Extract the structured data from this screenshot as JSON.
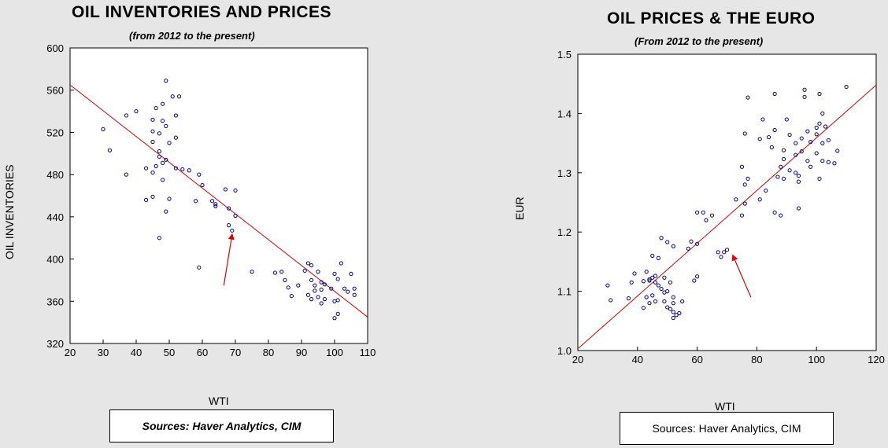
{
  "left": {
    "title": "OIL INVENTORIES AND PRICES",
    "subtitle": "(from 2012 to the present)",
    "source": "Sources: Haver Analytics, CIM"
  },
  "right": {
    "title": "OIL PRICES & THE EURO",
    "subtitle": "(From 2012 to the present)",
    "source": "Sources: Haver Analytics, CIM"
  },
  "colors": {
    "points": "#00008b",
    "trend": "#d40000",
    "arrow": "#e00000",
    "plot_bg": "#ffffff",
    "page_bg": "#e6e6e6"
  },
  "chart_data": [
    {
      "type": "scatter",
      "title": "OIL INVENTORIES AND PRICES",
      "subtitle": "(from 2012 to the present)",
      "xlabel": "WTI",
      "ylabel": "OIL INVENTORIES",
      "xlim": [
        20,
        110
      ],
      "ylim": [
        320,
        600
      ],
      "xticks": [
        20,
        30,
        40,
        50,
        60,
        70,
        80,
        90,
        100,
        110
      ],
      "yticks": [
        320,
        360,
        400,
        440,
        480,
        520,
        560,
        600
      ],
      "grid": false,
      "trendline": {
        "x": [
          20,
          110
        ],
        "y": [
          565,
          345
        ]
      },
      "arrow": {
        "from": [
          66.5,
          375
        ],
        "to": [
          69,
          423
        ]
      },
      "points": [
        [
          49,
          569
        ],
        [
          51,
          554
        ],
        [
          53,
          554
        ],
        [
          48,
          547
        ],
        [
          46,
          543
        ],
        [
          40,
          540
        ],
        [
          37,
          536
        ],
        [
          52,
          536
        ],
        [
          45,
          532
        ],
        [
          48,
          531
        ],
        [
          49,
          526
        ],
        [
          45,
          521
        ],
        [
          30,
          523
        ],
        [
          47,
          519
        ],
        [
          52,
          515
        ],
        [
          50,
          510
        ],
        [
          45,
          511
        ],
        [
          32,
          503
        ],
        [
          47,
          502
        ],
        [
          47,
          497
        ],
        [
          49,
          494
        ],
        [
          48,
          491
        ],
        [
          46,
          488
        ],
        [
          43,
          486
        ],
        [
          52,
          486
        ],
        [
          54,
          485
        ],
        [
          56,
          484
        ],
        [
          45,
          482
        ],
        [
          37,
          480
        ],
        [
          59,
          480
        ],
        [
          48,
          475
        ],
        [
          60,
          470
        ],
        [
          67,
          466
        ],
        [
          70,
          465
        ],
        [
          50,
          457
        ],
        [
          43,
          456
        ],
        [
          45,
          459
        ],
        [
          58,
          455
        ],
        [
          63,
          455
        ],
        [
          64,
          452
        ],
        [
          64,
          450
        ],
        [
          49,
          445
        ],
        [
          68,
          448
        ],
        [
          70,
          441
        ],
        [
          68,
          432
        ],
        [
          69,
          427
        ],
        [
          47,
          420
        ],
        [
          59,
          392
        ],
        [
          75,
          388
        ],
        [
          92,
          396
        ],
        [
          93,
          394
        ],
        [
          102,
          396
        ],
        [
          100,
          386
        ],
        [
          105,
          386
        ],
        [
          91,
          389
        ],
        [
          95,
          388
        ],
        [
          84,
          388
        ],
        [
          82,
          387
        ],
        [
          101,
          381
        ],
        [
          85,
          380
        ],
        [
          93,
          380
        ],
        [
          96,
          378
        ],
        [
          97,
          376
        ],
        [
          89,
          375
        ],
        [
          103,
          372
        ],
        [
          104,
          369
        ],
        [
          99,
          372
        ],
        [
          86,
          373
        ],
        [
          106,
          372
        ],
        [
          94,
          370
        ],
        [
          92,
          366
        ],
        [
          95,
          364
        ],
        [
          93,
          362
        ],
        [
          97,
          362
        ],
        [
          100,
          360
        ],
        [
          101,
          361
        ],
        [
          96,
          358
        ],
        [
          106,
          366
        ],
        [
          100,
          344
        ],
        [
          101,
          348
        ],
        [
          87,
          365
        ],
        [
          94,
          375
        ],
        [
          96,
          371
        ]
      ]
    },
    {
      "type": "scatter",
      "title": "OIL PRICES & THE EURO",
      "subtitle": "(From 2012 to the present)",
      "xlabel": "WTI",
      "ylabel": "EUR",
      "xlim": [
        20,
        120
      ],
      "ylim": [
        1.0,
        1.5
      ],
      "xticks": [
        20,
        40,
        60,
        80,
        100,
        120
      ],
      "yticks": [
        1.0,
        1.1,
        1.2,
        1.3,
        1.4,
        1.5
      ],
      "ytick_labels": [
        "1.0",
        "1.1",
        "1.2",
        "1.3",
        "1.4",
        "1.5"
      ],
      "grid": false,
      "trendline": {
        "x": [
          20,
          120
        ],
        "y": [
          1.003,
          1.448
        ]
      },
      "arrow": {
        "from": [
          78,
          1.09
        ],
        "to": [
          72,
          1.16
        ]
      },
      "points": [
        [
          110,
          1.445
        ],
        [
          96,
          1.44
        ],
        [
          86,
          1.433
        ],
        [
          77,
          1.427
        ],
        [
          101,
          1.433
        ],
        [
          96,
          1.428
        ],
        [
          102,
          1.4
        ],
        [
          82,
          1.39
        ],
        [
          90,
          1.39
        ],
        [
          101,
          1.383
        ],
        [
          103,
          1.378
        ],
        [
          100,
          1.376
        ],
        [
          86,
          1.372
        ],
        [
          97,
          1.37
        ],
        [
          76,
          1.366
        ],
        [
          100,
          1.365
        ],
        [
          91,
          1.364
        ],
        [
          84,
          1.36
        ],
        [
          95,
          1.358
        ],
        [
          81,
          1.357
        ],
        [
          104,
          1.355
        ],
        [
          98,
          1.352
        ],
        [
          93,
          1.35
        ],
        [
          102,
          1.35
        ],
        [
          85,
          1.343
        ],
        [
          89,
          1.338
        ],
        [
          107,
          1.337
        ],
        [
          95,
          1.336
        ],
        [
          100,
          1.333
        ],
        [
          93,
          1.33
        ],
        [
          89,
          1.323
        ],
        [
          97,
          1.32
        ],
        [
          104,
          1.318
        ],
        [
          102,
          1.32
        ],
        [
          106,
          1.316
        ],
        [
          98,
          1.31
        ],
        [
          88,
          1.31
        ],
        [
          75,
          1.31
        ],
        [
          91,
          1.304
        ],
        [
          93,
          1.3
        ],
        [
          94,
          1.295
        ],
        [
          87,
          1.293
        ],
        [
          101,
          1.29
        ],
        [
          89,
          1.29
        ],
        [
          77,
          1.29
        ],
        [
          94,
          1.285
        ],
        [
          76,
          1.28
        ],
        [
          83,
          1.27
        ],
        [
          81,
          1.255
        ],
        [
          73,
          1.255
        ],
        [
          76,
          1.248
        ],
        [
          94,
          1.24
        ],
        [
          86,
          1.233
        ],
        [
          75,
          1.228
        ],
        [
          88,
          1.228
        ],
        [
          62,
          1.233
        ],
        [
          60,
          1.233
        ],
        [
          65,
          1.228
        ],
        [
          63,
          1.22
        ],
        [
          58,
          1.184
        ],
        [
          48,
          1.19
        ],
        [
          50,
          1.183
        ],
        [
          60,
          1.18
        ],
        [
          57,
          1.172
        ],
        [
          52,
          1.176
        ],
        [
          45,
          1.16
        ],
        [
          47,
          1.156
        ],
        [
          67,
          1.166
        ],
        [
          70,
          1.17
        ],
        [
          68,
          1.158
        ],
        [
          69,
          1.166
        ],
        [
          60,
          1.125
        ],
        [
          59,
          1.118
        ],
        [
          43,
          1.133
        ],
        [
          39,
          1.13
        ],
        [
          45,
          1.123
        ],
        [
          49,
          1.123
        ],
        [
          46,
          1.126
        ],
        [
          44,
          1.12
        ],
        [
          42,
          1.117
        ],
        [
          44,
          1.118
        ],
        [
          46,
          1.115
        ],
        [
          38,
          1.115
        ],
        [
          30,
          1.11
        ],
        [
          51,
          1.115
        ],
        [
          47,
          1.11
        ],
        [
          48,
          1.104
        ],
        [
          50,
          1.1
        ],
        [
          49,
          1.098
        ],
        [
          45,
          1.093
        ],
        [
          52,
          1.09
        ],
        [
          37,
          1.088
        ],
        [
          31,
          1.085
        ],
        [
          43,
          1.09
        ],
        [
          44,
          1.08
        ],
        [
          46,
          1.083
        ],
        [
          49,
          1.083
        ],
        [
          52,
          1.08
        ],
        [
          55,
          1.083
        ],
        [
          50,
          1.073
        ],
        [
          42,
          1.072
        ],
        [
          51,
          1.07
        ],
        [
          53,
          1.06
        ],
        [
          52,
          1.065
        ],
        [
          54,
          1.063
        ],
        [
          52,
          1.055
        ]
      ]
    }
  ]
}
